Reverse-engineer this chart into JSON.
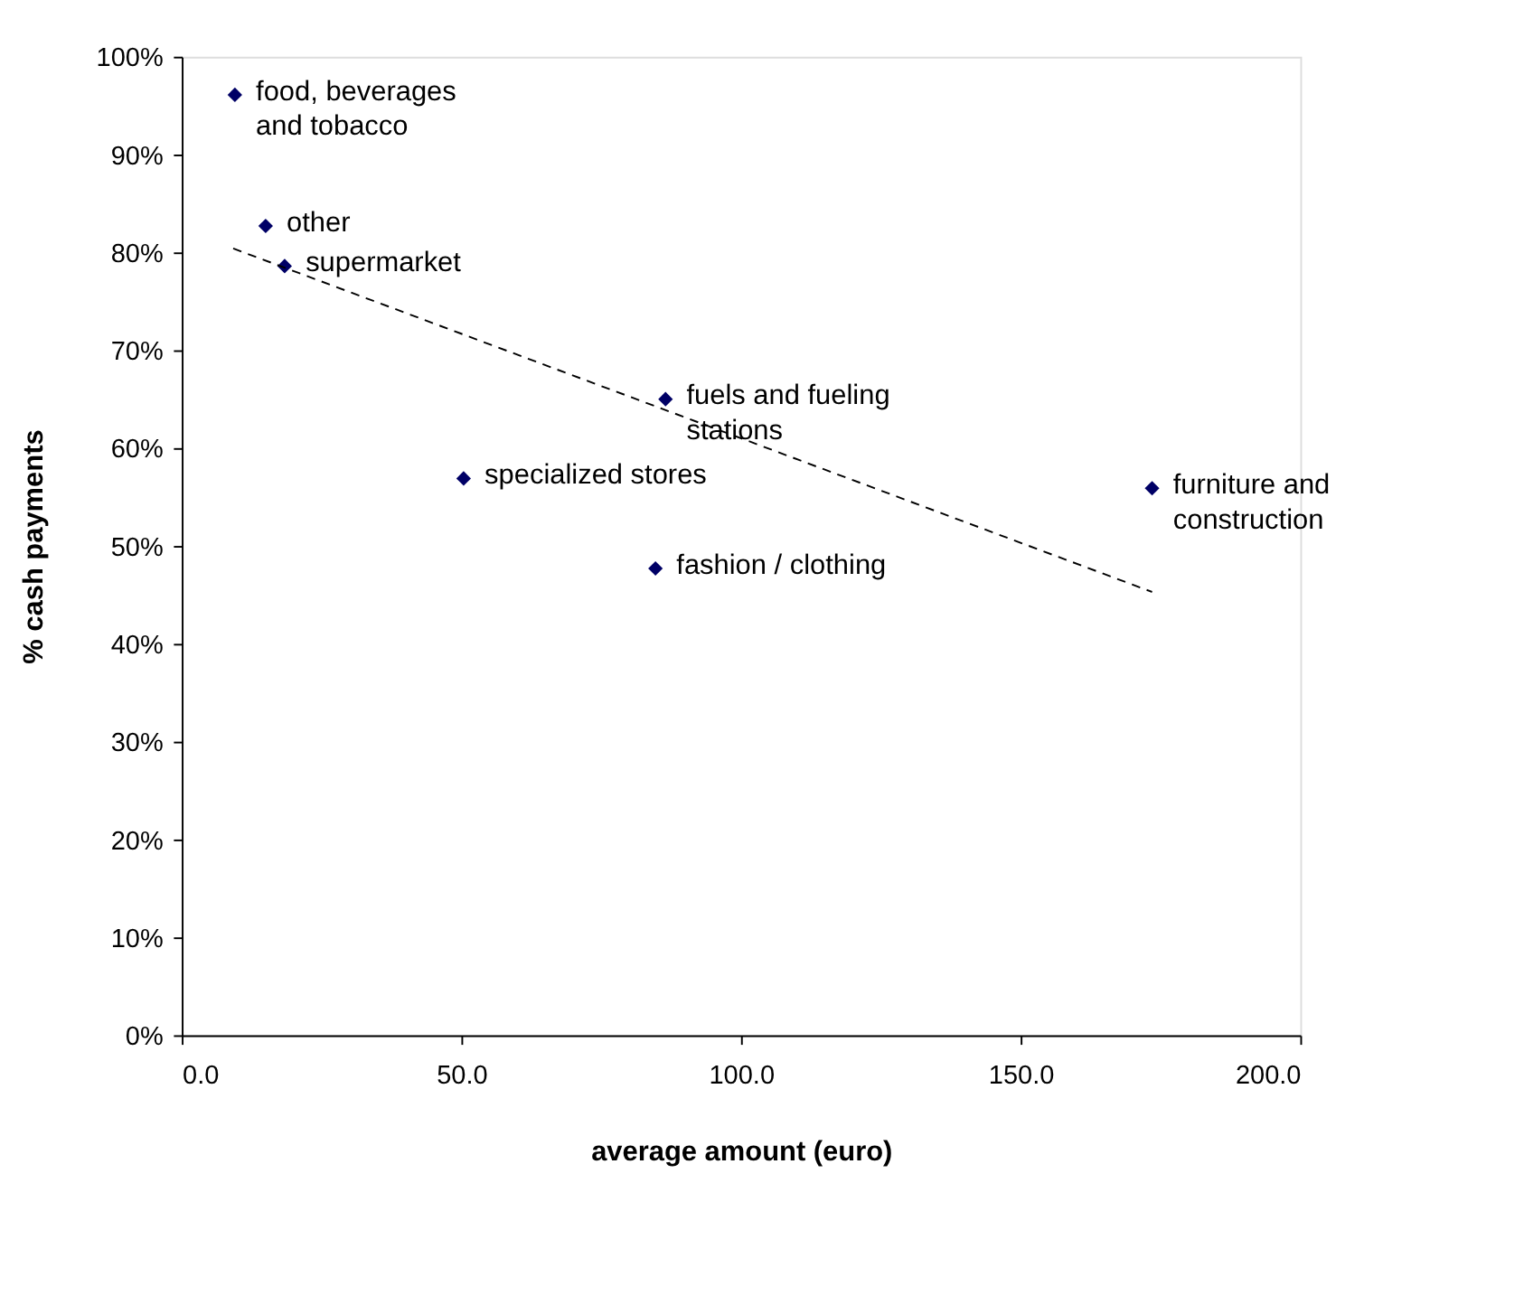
{
  "chart_data": {
    "type": "scatter",
    "xlabel": "average amount (euro)",
    "ylabel": "% cash payments",
    "series": [
      {
        "type": "scatter",
        "color": "#000066",
        "marker": "diamond",
        "x": [
          9.5,
          15.0,
          18.4,
          86.5,
          50.4,
          84.7,
          173.5
        ],
        "values": [
          96.1,
          82.7,
          78.6,
          65.0,
          56.9,
          47.7,
          55.9
        ]
      },
      {
        "type": "line",
        "color": "#000000",
        "line_style": "dashed",
        "x": [
          9.2,
          173.5
        ],
        "values": [
          80.4,
          45.3
        ]
      }
    ],
    "annotations": [
      {
        "text": "food, beverages\n   and tobacco",
        "x": 9.5,
        "y": 96.1
      },
      {
        "text": "other",
        "x": 15.0,
        "y": 82.7
      },
      {
        "text": "supermarket",
        "x": 18.4,
        "y": 78.6
      },
      {
        "text": "fuels and fueling\n        stations",
        "x": 86.5,
        "y": 65.0
      },
      {
        "text": "specialized stores",
        "x": 50.4,
        "y": 56.9
      },
      {
        "text": "fashion / clothing",
        "x": 84.7,
        "y": 47.7
      },
      {
        "text": "furniture and\nconstruction",
        "x": 173.5,
        "y": 55.9
      }
    ],
    "xlim": [
      0,
      200
    ],
    "xticks": [
      {
        "value": 0,
        "label": "0.0"
      },
      {
        "value": 50,
        "label": "50.0"
      },
      {
        "value": 100,
        "label": "100.0"
      },
      {
        "value": 150,
        "label": "150.0"
      },
      {
        "value": 200,
        "label": "200.0"
      }
    ],
    "ylim": [
      0,
      100
    ],
    "yticks": [
      {
        "value": 0,
        "label": "0%"
      },
      {
        "value": 10,
        "label": "10%"
      },
      {
        "value": 20,
        "label": "20%"
      },
      {
        "value": 30,
        "label": "30%"
      },
      {
        "value": 40,
        "label": "40%"
      },
      {
        "value": 50,
        "label": "50%"
      },
      {
        "value": 60,
        "label": "60%"
      },
      {
        "value": 70,
        "label": "70%"
      },
      {
        "value": 80,
        "label": "80%"
      },
      {
        "value": 90,
        "label": "90%"
      },
      {
        "value": 100,
        "label": "100%"
      }
    ],
    "grid": false
  }
}
